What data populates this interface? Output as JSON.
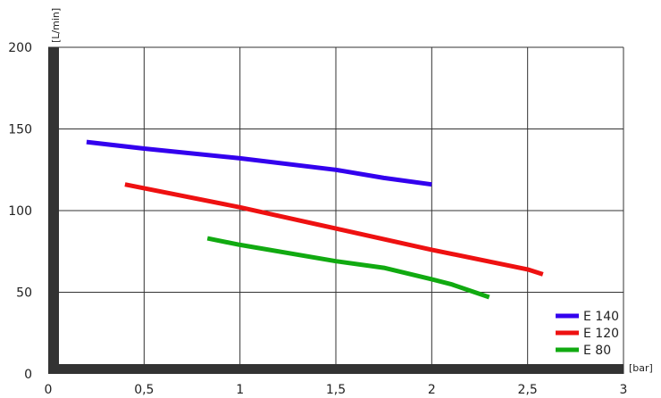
{
  "chart_data": {
    "type": "line",
    "xlabel": "[bar]",
    "ylabel": "[L/min]",
    "xlim": [
      0,
      3
    ],
    "ylim": [
      0,
      200
    ],
    "x_ticks": [
      "0",
      "0,5",
      "1",
      "1,5",
      "2",
      "2,5",
      "3"
    ],
    "y_ticks": [
      "0",
      "50",
      "100",
      "150",
      "200"
    ],
    "x_tick_values": [
      0,
      0.5,
      1,
      1.5,
      2,
      2.5,
      3
    ],
    "y_tick_values": [
      0,
      50,
      100,
      150,
      200
    ],
    "grid": true,
    "legend_position": "bottom-right",
    "series": [
      {
        "name": "E 140",
        "color": "#3300ee",
        "x": [
          0.2,
          0.5,
          1.0,
          1.5,
          1.75,
          2.0
        ],
        "y": [
          142,
          138,
          132,
          125,
          120,
          116
        ]
      },
      {
        "name": "E 120",
        "color": "#ee1111",
        "x": [
          0.4,
          1.0,
          1.5,
          2.0,
          2.5,
          2.58
        ],
        "y": [
          116,
          102,
          89,
          76,
          64,
          61
        ]
      },
      {
        "name": "E 80",
        "color": "#11aa11",
        "x": [
          0.83,
          1.0,
          1.5,
          1.75,
          2.0,
          2.1,
          2.2,
          2.3
        ],
        "y": [
          83,
          79,
          69,
          65,
          58,
          55,
          51,
          47
        ]
      }
    ]
  }
}
